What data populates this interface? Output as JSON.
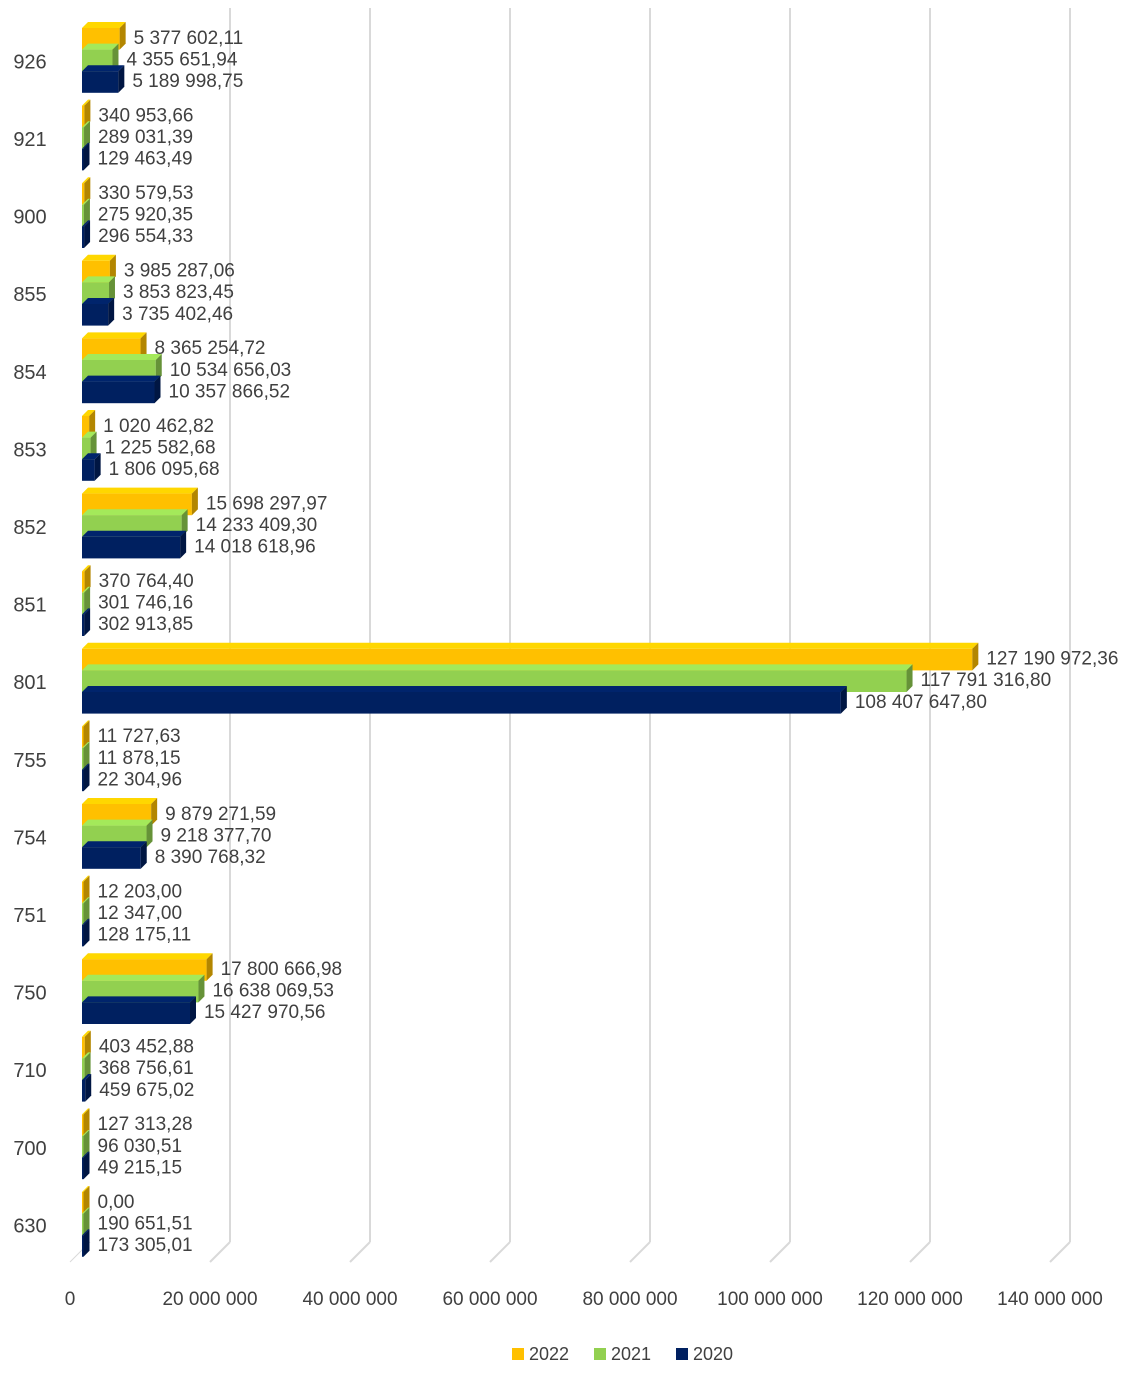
{
  "chart_data": {
    "type": "bar",
    "orientation": "horizontal",
    "style": "3d",
    "categories": [
      "926",
      "921",
      "900",
      "855",
      "854",
      "853",
      "852",
      "851",
      "801",
      "755",
      "754",
      "751",
      "750",
      "710",
      "700",
      "630"
    ],
    "series": [
      {
        "name": "2022",
        "color": "#FFC000",
        "values": [
          5377602.11,
          340953.66,
          330579.53,
          3985287.06,
          8365254.72,
          1020462.82,
          15698297.97,
          370764.4,
          127190972.36,
          11727.63,
          9879271.59,
          12203.0,
          17800666.98,
          403452.88,
          127313.28,
          0.0
        ],
        "labels": [
          "5 377 602,11",
          "340 953,66",
          "330 579,53",
          "3 985 287,06",
          "8 365 254,72",
          "1 020 462,82",
          "15 698 297,97",
          "370 764,40",
          "127 190 972,36",
          "11 727,63",
          "9 879 271,59",
          "12 203,00",
          "17 800 666,98",
          "403 452,88",
          "127 313,28",
          "0,00"
        ]
      },
      {
        "name": "2021",
        "color": "#92D050",
        "values": [
          4355651.94,
          289031.39,
          275920.35,
          3853823.45,
          10534656.03,
          1225582.68,
          14233409.3,
          301746.16,
          117791316.8,
          11878.15,
          9218377.7,
          12347.0,
          16638069.53,
          368756.61,
          96030.51,
          190651.51
        ],
        "labels": [
          "4 355 651,94",
          "289 031,39",
          "275 920,35",
          "3 853 823,45",
          "10 534 656,03",
          "1 225 582,68",
          "14 233 409,30",
          "301 746,16",
          "117 791 316,80",
          "11 878,15",
          "9 218 377,70",
          "12 347,00",
          "16 638 069,53",
          "368 756,61",
          "96 030,51",
          "190 651,51"
        ]
      },
      {
        "name": "2020",
        "color": "#002060",
        "values": [
          5189998.75,
          129463.49,
          296554.33,
          3735402.46,
          10357866.52,
          1806095.68,
          14018618.96,
          302913.85,
          108407647.8,
          22304.96,
          8390768.32,
          128175.11,
          15427970.56,
          459675.02,
          49215.15,
          173305.01
        ],
        "labels": [
          "5 189 998,75",
          "129 463,49",
          "296 554,33",
          "3 735 402,46",
          "10 357 866,52",
          "1 806 095,68",
          "14 018 618,96",
          "302 913,85",
          "108 407 647,80",
          "22 304,96",
          "8 390 768,32",
          "128 175,11",
          "15 427 970,56",
          "459 675,02",
          "49 215,15",
          "173 305,01"
        ]
      }
    ],
    "xlim": [
      0,
      140000000
    ],
    "x_ticks": [
      0,
      20000000,
      40000000,
      60000000,
      80000000,
      100000000,
      120000000,
      140000000
    ],
    "x_tick_labels": [
      "0",
      "20 000 000",
      "40 000 000",
      "60 000 000",
      "80 000 000",
      "100 000 000",
      "120 000 000",
      "140 000 000"
    ],
    "grid": true,
    "legend": {
      "position": "bottom",
      "entries": [
        "2022",
        "2021",
        "2020"
      ]
    },
    "title": "",
    "xlabel": "",
    "ylabel": ""
  }
}
